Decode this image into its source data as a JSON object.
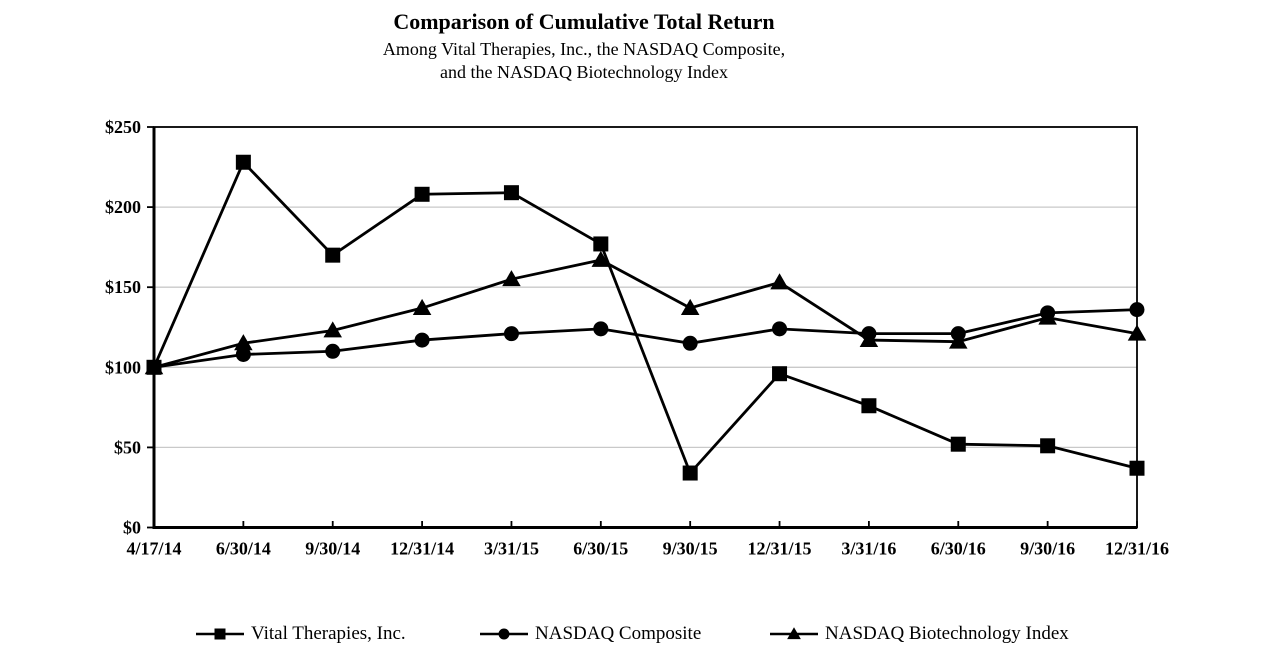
{
  "chart_data": {
    "type": "line",
    "title": "Comparison of Cumulative Total Return",
    "subtitle_line1": "Among Vital Therapies, Inc., the NASDAQ Composite,",
    "subtitle_line2": "and the NASDAQ Biotechnology Index",
    "x_labels": [
      "4/17/14",
      "6/30/14",
      "9/30/14",
      "12/31/14",
      "3/31/15",
      "6/30/15",
      "9/30/15",
      "12/31/15",
      "3/31/16",
      "6/30/16",
      "9/30/16",
      "12/31/16"
    ],
    "series": [
      {
        "name": "Vital Therapies, Inc.",
        "marker": "square",
        "values": [
          100,
          228,
          170,
          208,
          209,
          177,
          34,
          96,
          76,
          52,
          51,
          37
        ]
      },
      {
        "name": "NASDAQ Composite",
        "marker": "circle",
        "values": [
          100,
          108,
          110,
          117,
          121,
          124,
          115,
          124,
          121,
          121,
          134,
          136
        ]
      },
      {
        "name": "NASDAQ Biotechnology Index",
        "marker": "triangle",
        "values": [
          100,
          115,
          123,
          137,
          155,
          167,
          137,
          153,
          117,
          116,
          131,
          121
        ]
      }
    ],
    "y_ticks": [
      "$0",
      "$50",
      "$100",
      "$150",
      "$200",
      "$250"
    ],
    "y_tick_values": [
      0,
      50,
      100,
      150,
      200,
      250
    ],
    "ylim": [
      0,
      250
    ],
    "xlabel": "",
    "ylabel": "",
    "grid": true,
    "legend_position": "bottom",
    "colors": {
      "line": "#000000",
      "marker": "#000000",
      "gridline": "#c9c9c9",
      "axis": "#000000",
      "text": "#000000",
      "background": "#ffffff"
    }
  },
  "legend": {
    "items": [
      {
        "label": "Vital Therapies, Inc.",
        "marker": "square"
      },
      {
        "label": "NASDAQ Composite",
        "marker": "circle"
      },
      {
        "label": "NASDAQ Biotechnology Index",
        "marker": "triangle"
      }
    ]
  }
}
